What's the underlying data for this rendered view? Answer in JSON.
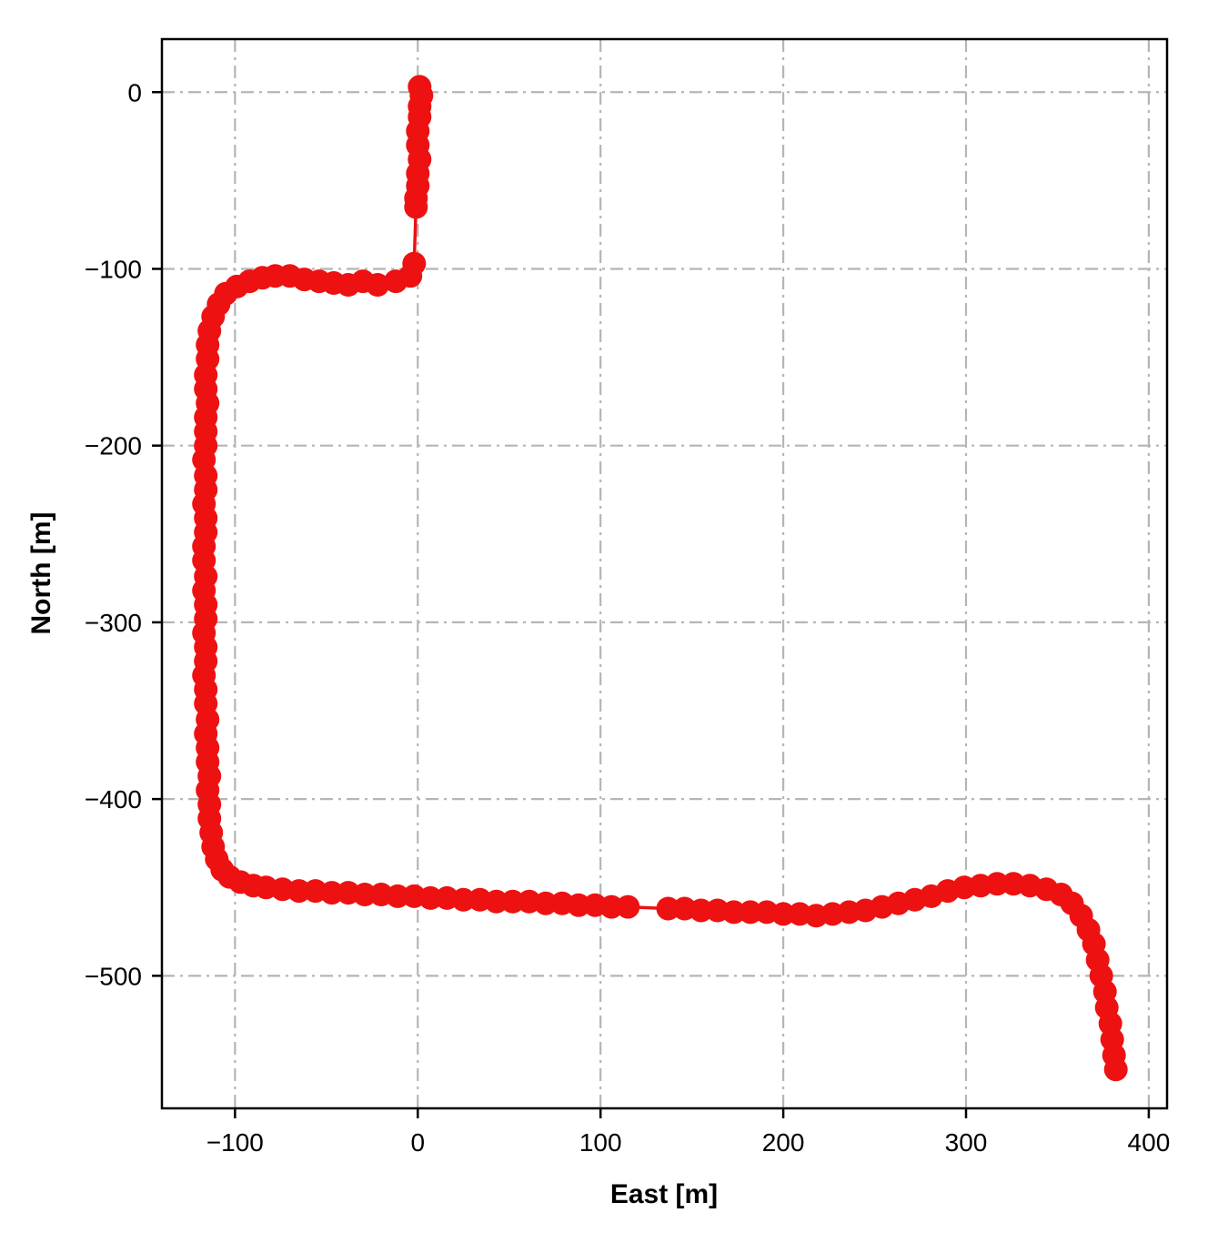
{
  "chart_data": {
    "type": "scatter",
    "title": "",
    "xlabel": "East [m]",
    "ylabel": "North [m]",
    "xlim": [
      -140,
      410
    ],
    "ylim": [
      -575,
      30
    ],
    "grid": "dash-dot",
    "legend": "none",
    "colors": {
      "series": "#ee1111",
      "grid": "#b5b5b5",
      "axis": "#000000",
      "background": "#ffffff"
    },
    "x_ticks": {
      "values": [
        -100,
        0,
        100,
        200,
        300,
        400
      ],
      "labels": [
        "−100",
        "0",
        "100",
        "200",
        "300",
        "400"
      ]
    },
    "y_ticks": {
      "values": [
        0,
        -100,
        -200,
        -300,
        -400,
        -500
      ],
      "labels": [
        "0",
        "−100",
        "−200",
        "−300",
        "−400",
        "−500"
      ]
    },
    "series": [
      {
        "name": "trajectory",
        "marker": "circle",
        "marker_radius": 13,
        "line_width": 3.5,
        "points": [
          [
            1,
            3
          ],
          [
            2,
            -2
          ],
          [
            1,
            -8
          ],
          [
            1,
            -14
          ],
          [
            0,
            -22
          ],
          [
            0,
            -30
          ],
          [
            1,
            -38
          ],
          [
            0,
            -46
          ],
          [
            0,
            -53
          ],
          [
            -1,
            -60
          ],
          [
            -1,
            -65
          ],
          [
            -2,
            -97
          ],
          [
            -4,
            -104
          ],
          [
            -12,
            -107
          ],
          [
            -22,
            -109
          ],
          [
            -30,
            -107
          ],
          [
            -38,
            -109
          ],
          [
            -46,
            -108
          ],
          [
            -54,
            -107
          ],
          [
            -62,
            -106
          ],
          [
            -70,
            -104
          ],
          [
            -78,
            -104
          ],
          [
            -85,
            -105
          ],
          [
            -92,
            -107
          ],
          [
            -99,
            -110
          ],
          [
            -105,
            -114
          ],
          [
            -109,
            -120
          ],
          [
            -112,
            -127
          ],
          [
            -114,
            -135
          ],
          [
            -115,
            -143
          ],
          [
            -115,
            -151
          ],
          [
            -116,
            -160
          ],
          [
            -116,
            -168
          ],
          [
            -115,
            -176
          ],
          [
            -116,
            -184
          ],
          [
            -116,
            -192
          ],
          [
            -116,
            -200
          ],
          [
            -117,
            -208
          ],
          [
            -116,
            -217
          ],
          [
            -116,
            -225
          ],
          [
            -117,
            -233
          ],
          [
            -116,
            -241
          ],
          [
            -116,
            -249
          ],
          [
            -117,
            -257
          ],
          [
            -117,
            -265
          ],
          [
            -116,
            -274
          ],
          [
            -117,
            -282
          ],
          [
            -116,
            -290
          ],
          [
            -116,
            -298
          ],
          [
            -117,
            -306
          ],
          [
            -116,
            -314
          ],
          [
            -116,
            -322
          ],
          [
            -117,
            -330
          ],
          [
            -116,
            -338
          ],
          [
            -116,
            -346
          ],
          [
            -115,
            -355
          ],
          [
            -116,
            -363
          ],
          [
            -115,
            -371
          ],
          [
            -115,
            -379
          ],
          [
            -114,
            -387
          ],
          [
            -115,
            -395
          ],
          [
            -114,
            -403
          ],
          [
            -114,
            -411
          ],
          [
            -113,
            -419
          ],
          [
            -112,
            -427
          ],
          [
            -110,
            -434
          ],
          [
            -107,
            -440
          ],
          [
            -103,
            -444
          ],
          [
            -97,
            -447
          ],
          [
            -90,
            -449
          ],
          [
            -83,
            -450
          ],
          [
            -74,
            -451
          ],
          [
            -65,
            -452
          ],
          [
            -56,
            -452
          ],
          [
            -47,
            -453
          ],
          [
            -38,
            -453
          ],
          [
            -29,
            -454
          ],
          [
            -20,
            -454
          ],
          [
            -11,
            -455
          ],
          [
            -2,
            -455
          ],
          [
            7,
            -456
          ],
          [
            16,
            -456
          ],
          [
            25,
            -457
          ],
          [
            34,
            -457
          ],
          [
            43,
            -458
          ],
          [
            52,
            -458
          ],
          [
            61,
            -458
          ],
          [
            70,
            -459
          ],
          [
            79,
            -459
          ],
          [
            88,
            -460
          ],
          [
            97,
            -460
          ],
          [
            106,
            -461
          ],
          [
            115,
            -461
          ],
          [
            137,
            -462
          ],
          [
            146,
            -462
          ],
          [
            155,
            -463
          ],
          [
            164,
            -463
          ],
          [
            173,
            -464
          ],
          [
            182,
            -464
          ],
          [
            191,
            -464
          ],
          [
            200,
            -465
          ],
          [
            209,
            -465
          ],
          [
            218,
            -466
          ],
          [
            227,
            -465
          ],
          [
            236,
            -464
          ],
          [
            245,
            -463
          ],
          [
            254,
            -461
          ],
          [
            263,
            -459
          ],
          [
            272,
            -457
          ],
          [
            281,
            -455
          ],
          [
            290,
            -452
          ],
          [
            299,
            -450
          ],
          [
            308,
            -449
          ],
          [
            317,
            -448
          ],
          [
            326,
            -448
          ],
          [
            335,
            -449
          ],
          [
            344,
            -451
          ],
          [
            352,
            -454
          ],
          [
            358,
            -459
          ],
          [
            363,
            -466
          ],
          [
            367,
            -474
          ],
          [
            370,
            -482
          ],
          [
            372,
            -491
          ],
          [
            374,
            -500
          ],
          [
            376,
            -509
          ],
          [
            377,
            -518
          ],
          [
            379,
            -527
          ],
          [
            380,
            -536
          ],
          [
            381,
            -545
          ],
          [
            382,
            -553
          ]
        ]
      }
    ]
  }
}
